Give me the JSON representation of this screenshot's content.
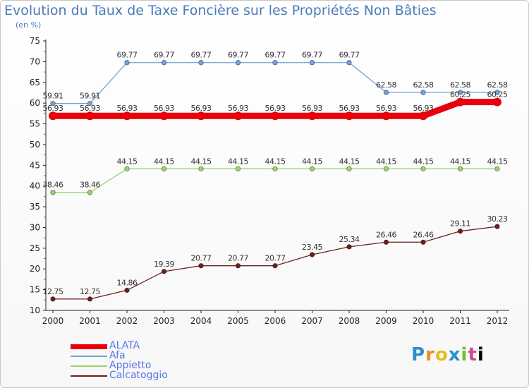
{
  "header": {
    "title": "Evolution du Taux de Taxe Foncière sur les Propriétés Non Bâties",
    "unit": "(en %)"
  },
  "logo": {
    "letters": [
      "P",
      "r",
      "o",
      "x",
      "i",
      "t",
      "i"
    ]
  },
  "colors": {
    "ALATA": "#e8000a",
    "Afa": "#6fa3d8",
    "Appietto": "#9ad46a",
    "Calcatoggio": "#6b1f1f",
    "title": "#4a7ab8",
    "legend_text": "#5572e6"
  },
  "chart_data": {
    "type": "line",
    "title": "Evolution du Taux de Taxe Foncière sur les Propriétés Non Bâties",
    "ylabel": "(en %)",
    "xlabel": "",
    "x": [
      "2000",
      "2001",
      "2002",
      "2003",
      "2004",
      "2005",
      "2006",
      "2007",
      "2008",
      "2009",
      "2010",
      "2011",
      "2012"
    ],
    "ylim": [
      10,
      75
    ],
    "yticks": [
      10,
      15,
      20,
      25,
      30,
      35,
      40,
      45,
      50,
      55,
      60,
      65,
      70,
      75
    ],
    "grid": false,
    "legend_position": "bottom-left",
    "series": [
      {
        "name": "ALATA",
        "color": "#e8000a",
        "emphasis": true,
        "values": [
          56.93,
          56.93,
          56.93,
          56.93,
          56.93,
          56.93,
          56.93,
          56.93,
          56.93,
          56.93,
          56.93,
          60.25,
          60.25
        ],
        "labels": [
          "56.93",
          "56.93",
          "56.93",
          "56.93",
          "56.93",
          "56.93",
          "56.93",
          "56.93",
          "56.93",
          "56.93",
          "56.93",
          "60.25",
          "60.25"
        ]
      },
      {
        "name": "Afa",
        "color": "#6fa3d8",
        "values": [
          59.91,
          59.91,
          69.77,
          69.77,
          69.77,
          69.77,
          69.77,
          69.77,
          69.77,
          62.58,
          62.58,
          62.58,
          62.58
        ],
        "labels": [
          "59.91",
          "59.91",
          "69.77",
          "69.77",
          "69.77",
          "69.77",
          "69.77",
          "69.77",
          "69.77",
          "62.58",
          "62.58",
          "62.58",
          "62.58"
        ]
      },
      {
        "name": "Appietto",
        "color": "#9ad46a",
        "values": [
          38.46,
          38.46,
          44.15,
          44.15,
          44.15,
          44.15,
          44.15,
          44.15,
          44.15,
          44.15,
          44.15,
          44.15,
          44.15
        ],
        "labels": [
          "38.46",
          "38.46",
          "44.15",
          "44.15",
          "44.15",
          "44.15",
          "44.15",
          "44.15",
          "44.15",
          "44.15",
          "44.15",
          "44.15",
          "44.15"
        ]
      },
      {
        "name": "Calcatoggio",
        "color": "#6b1f1f",
        "values": [
          12.75,
          12.75,
          14.86,
          19.39,
          20.77,
          20.77,
          20.77,
          23.45,
          25.34,
          26.46,
          26.46,
          29.11,
          30.23
        ],
        "labels": [
          "12.75",
          "12.75",
          "14.86",
          "19.39",
          "20.77",
          "20.77",
          "20.77",
          "23.45",
          "25.34",
          "26.46",
          "26.46",
          "29.11",
          "30.23"
        ]
      }
    ]
  }
}
